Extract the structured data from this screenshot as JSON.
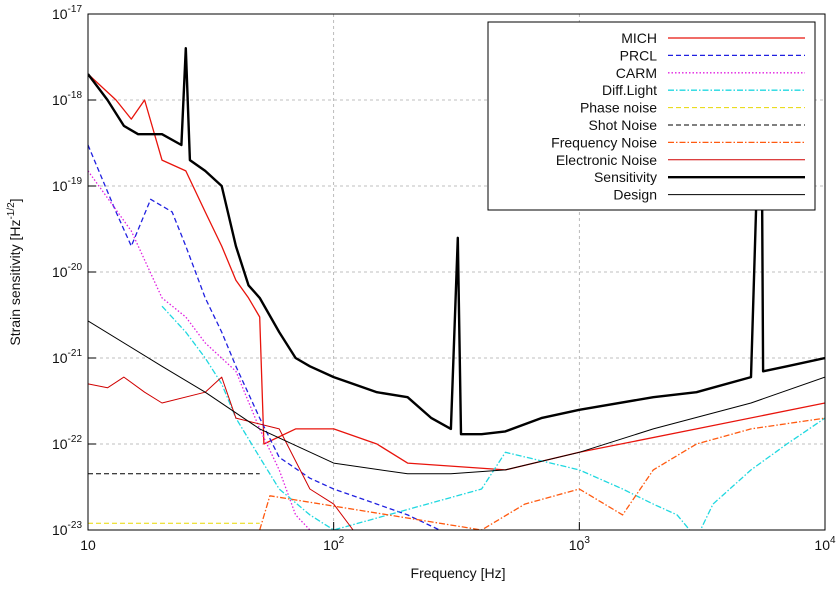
{
  "chart_data": {
    "type": "line",
    "log_x": true,
    "log_y": true,
    "grid": true,
    "xlabel": "Frequency [Hz]",
    "ylabel_parts": [
      "Strain sensitivity [Hz",
      "-1/2",
      "]"
    ],
    "xlim": [
      10,
      10000
    ],
    "xticks": [
      10,
      {
        "value": 100,
        "label": "10",
        "exponent": "2"
      },
      {
        "value": 1000,
        "label": "10",
        "exponent": "3"
      },
      {
        "value": 10000,
        "label": "10",
        "exponent": "4"
      }
    ],
    "ylim": [
      1e-23,
      1e-17
    ],
    "yticks": [
      {
        "value": 1e-23,
        "label": "10",
        "exponent": "-23"
      },
      {
        "value": 1e-22,
        "label": "10",
        "exponent": "-22"
      },
      {
        "value": 1e-21,
        "label": "10",
        "exponent": "-21"
      },
      {
        "value": 1e-20,
        "label": "10",
        "exponent": "-20"
      },
      {
        "value": 1e-19,
        "label": "10",
        "exponent": "-19"
      },
      {
        "value": 1e-18,
        "label": "10",
        "exponent": "-18"
      },
      {
        "value": 1e-17,
        "label": "10",
        "exponent": "-17"
      }
    ],
    "legend": "top-right",
    "series": [
      {
        "name": "MICH",
        "color": "#e8140c",
        "style": "solid",
        "width": 1.3,
        "x": [
          10,
          13,
          15,
          17,
          20,
          25,
          30,
          35,
          40,
          45,
          50,
          52,
          70,
          100,
          150,
          200,
          500,
          1000,
          3000,
          10000
        ],
        "values": [
          2e-18,
          1e-18,
          6e-19,
          1e-18,
          2e-19,
          1.5e-19,
          5e-20,
          2e-20,
          8e-21,
          5e-21,
          3e-21,
          1e-22,
          1.5e-22,
          1.5e-22,
          1e-22,
          6e-23,
          5e-23,
          8e-23,
          1.5e-22,
          3e-22
        ]
      },
      {
        "name": "PRCL",
        "color": "#2020e0",
        "style": "dashed",
        "width": 1.3,
        "x": [
          10,
          13,
          15,
          18,
          22,
          25,
          30,
          35,
          40,
          50,
          60,
          80,
          100,
          150,
          200,
          270
        ],
        "values": [
          3e-19,
          5e-20,
          2e-20,
          7e-20,
          5e-20,
          2e-20,
          5e-21,
          2e-21,
          8e-22,
          2e-22,
          7e-23,
          4e-23,
          3e-23,
          2e-23,
          1.5e-23,
          1e-23
        ]
      },
      {
        "name": "CARM",
        "color": "#e020e0",
        "style": "dotted",
        "width": 1.3,
        "x": [
          10,
          15,
          20,
          25,
          30,
          40,
          50,
          60,
          70,
          80
        ],
        "values": [
          1.5e-19,
          3e-20,
          5e-21,
          3e-21,
          1.5e-21,
          7e-22,
          1.5e-22,
          5e-23,
          1.5e-23,
          1e-23
        ]
      },
      {
        "name": "Diff.Light",
        "color": "#20d8e0",
        "style": "dashdot",
        "width": 1.3,
        "x": [
          20,
          25,
          30,
          35,
          40,
          50,
          60,
          80,
          100,
          400,
          500,
          1000,
          1500,
          2000,
          2500,
          3000,
          3500,
          5000,
          7000,
          10000
        ],
        "values": [
          4e-21,
          2e-21,
          1e-21,
          5e-22,
          2e-22,
          7e-23,
          3e-23,
          1.5e-23,
          1e-23,
          3e-23,
          8e-23,
          5e-23,
          3e-23,
          2e-23,
          1.5e-23,
          8e-24,
          2e-23,
          5e-23,
          1e-22,
          2e-22
        ]
      },
      {
        "name": "Phase noise",
        "color": "#e8d800",
        "style": "dashed",
        "width": 1,
        "x": [
          10,
          50
        ],
        "values": [
          1.2e-23,
          1.2e-23
        ]
      },
      {
        "name": "Shot Noise",
        "color": "#000000",
        "style": "dashed",
        "width": 1,
        "x": [
          10,
          50
        ],
        "values": [
          4.5e-23,
          4.5e-23
        ]
      },
      {
        "name": "Frequency Noise",
        "color": "#ff5a10",
        "style": "dashdot",
        "width": 1.3,
        "x": [
          50,
          55,
          400,
          600,
          1000,
          1500,
          2000,
          3000,
          5000,
          10000
        ],
        "values": [
          1e-23,
          2.5e-23,
          1e-23,
          2e-23,
          3e-23,
          1.5e-23,
          5e-23,
          1e-22,
          1.5e-22,
          2e-22
        ]
      },
      {
        "name": "Electronic Noise",
        "color": "#d00000",
        "style": "solid",
        "width": 1,
        "x": [
          10,
          12,
          14,
          17,
          20,
          30,
          35,
          40,
          60,
          80,
          100,
          120
        ],
        "values": [
          5e-22,
          4.5e-22,
          6e-22,
          4e-22,
          3e-22,
          4e-22,
          6e-22,
          2e-22,
          1.5e-22,
          3e-23,
          2e-23,
          1e-23
        ]
      },
      {
        "name": "Sensitivity",
        "color": "#000000",
        "style": "solid",
        "width": 2.4,
        "x": [
          10,
          12,
          14,
          16,
          20,
          24,
          25,
          26,
          30,
          35,
          40,
          45,
          50,
          60,
          70,
          80,
          100,
          150,
          200,
          250,
          300,
          320,
          330,
          400,
          500,
          700,
          1000,
          2000,
          3000,
          5000,
          5500,
          5600,
          7000,
          10000
        ],
        "values": [
          2e-18,
          1e-18,
          5e-19,
          4e-19,
          4e-19,
          3e-19,
          4e-18,
          2e-19,
          1.5e-19,
          1e-19,
          2e-20,
          7e-21,
          5e-21,
          2e-21,
          1e-21,
          8e-22,
          6e-22,
          4e-22,
          3.5e-22,
          2e-22,
          1.5e-22,
          2.5e-20,
          1.3e-22,
          1.3e-22,
          1.4e-22,
          2e-22,
          2.5e-22,
          3.5e-22,
          4e-22,
          6e-22,
          5e-18,
          7e-22,
          8e-22,
          1e-21
        ]
      },
      {
        "name": "Design",
        "color": "#000000",
        "style": "solid",
        "width": 1,
        "x": [
          10,
          20,
          30,
          50,
          100,
          200,
          300,
          500,
          1000,
          2000,
          5000,
          10000
        ],
        "values": [
          2.7e-21,
          8e-22,
          4e-22,
          1.5e-22,
          6e-23,
          4.5e-23,
          4.5e-23,
          5e-23,
          8e-23,
          1.5e-22,
          3e-22,
          6e-22
        ]
      }
    ]
  }
}
